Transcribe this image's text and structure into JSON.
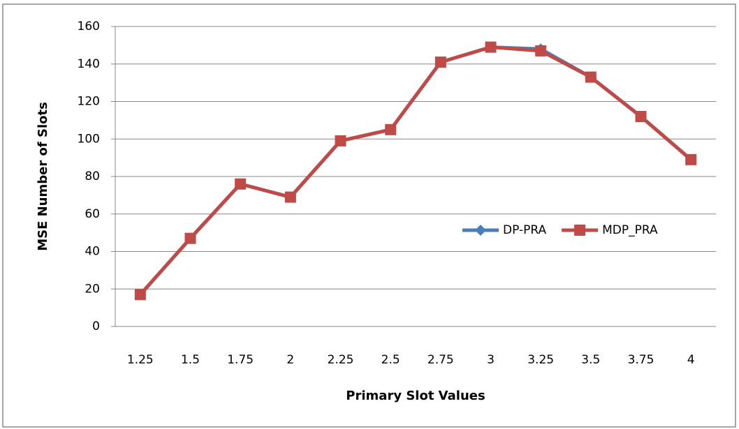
{
  "chart_data": {
    "type": "line",
    "x_label": "Primary Slot Values",
    "y_label": "MSE Number of Slots",
    "categories": [
      "1.25",
      "1.5",
      "1.75",
      "2",
      "2.25",
      "2.5",
      "2.75",
      "3",
      "3.25",
      "3.5",
      "3.75",
      "4"
    ],
    "series": [
      {
        "name": "DP-PRA",
        "color": "#4a7ebb",
        "marker": "diamond",
        "values": [
          17,
          47,
          76,
          69,
          99,
          105,
          141,
          149,
          148,
          133,
          112,
          89
        ]
      },
      {
        "name": "MDP_PRA",
        "color": "#be4b48",
        "marker": "square",
        "values": [
          17,
          47,
          76,
          69,
          99,
          105,
          141,
          149,
          147,
          133,
          112,
          89
        ]
      }
    ],
    "ylim": [
      0,
      160
    ],
    "yticks": [
      0,
      20,
      40,
      60,
      80,
      100,
      120,
      140,
      160
    ],
    "grid": true,
    "legend": "right"
  }
}
